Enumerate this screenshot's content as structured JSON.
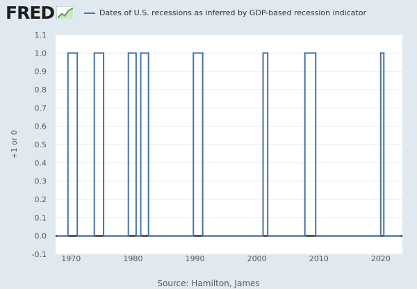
{
  "header": {
    "logo_text": "FRED",
    "logo_icon": "trend-line-icon"
  },
  "colors": {
    "background": "#e1e9f0",
    "plot_background": "#ffffff",
    "series": "#4572a7",
    "grid": "#e1e9f0",
    "zero_line": "#000000",
    "tick_label": "#595959"
  },
  "chart_data": {
    "type": "line",
    "title": "",
    "ylabel": "+1 or 0",
    "xlabel": "",
    "ylim": [
      -0.1,
      1.1
    ],
    "yticks": [
      -0.1,
      0.0,
      0.1,
      0.2,
      0.3,
      0.4,
      0.5,
      0.6,
      0.7,
      0.8,
      0.9,
      1.0,
      1.1
    ],
    "ytick_labels": [
      "-0.1",
      "0.0",
      "0.1",
      "0.2",
      "0.3",
      "0.4",
      "0.5",
      "0.6",
      "0.7",
      "0.8",
      "0.9",
      "1.0",
      "1.1"
    ],
    "xlim": [
      1967.5,
      2023.5
    ],
    "xticks": [
      1970,
      1980,
      1990,
      2000,
      2010,
      2020
    ],
    "xtick_labels": [
      "1970",
      "1980",
      "1990",
      "2000",
      "2010",
      "2020"
    ],
    "grid": true,
    "legend": "top",
    "series": [
      {
        "name": "Dates of U.S. recessions as inferred by GDP-based recession indicator",
        "step": true,
        "x": [
          1967.75,
          1969.5,
          1971.0,
          1973.75,
          1975.25,
          1979.25,
          1980.5,
          1981.25,
          1982.5,
          1989.75,
          1991.25,
          2001.0,
          2001.75,
          2007.75,
          2009.5,
          2020.0,
          2020.5,
          2023.25
        ],
        "y": [
          0,
          1,
          0,
          1,
          0,
          1,
          0,
          1,
          0,
          1,
          0,
          1,
          0,
          1,
          0,
          1,
          0,
          0
        ]
      }
    ]
  },
  "footer": {
    "source_text": "Source: Hamilton, James"
  }
}
